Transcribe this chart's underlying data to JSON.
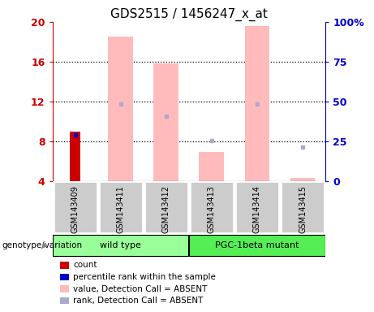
{
  "title": "GDS2515 / 1456247_x_at",
  "samples": [
    "GSM143409",
    "GSM143411",
    "GSM143412",
    "GSM143413",
    "GSM143414",
    "GSM143415"
  ],
  "ylim_left": [
    4,
    20
  ],
  "ylim_right": [
    0,
    100
  ],
  "yticks_left": [
    4,
    8,
    12,
    16,
    20
  ],
  "yticks_right": [
    0,
    25,
    50,
    75,
    100
  ],
  "ytick_labels_right": [
    "0",
    "25",
    "50",
    "75",
    "100%"
  ],
  "count_bars": {
    "GSM143409": {
      "value": 9.0,
      "color": "#cc0000"
    },
    "GSM143411": null,
    "GSM143412": null,
    "GSM143413": null,
    "GSM143414": null,
    "GSM143415": null
  },
  "percentile_bars": {
    "GSM143409": {
      "value": 8.6,
      "color": "#0000cc"
    },
    "GSM143411": null,
    "GSM143412": null,
    "GSM143413": null,
    "GSM143414": null,
    "GSM143415": null
  },
  "value_absent_bars": {
    "GSM143409": null,
    "GSM143411": {
      "value": 18.5
    },
    "GSM143412": {
      "value": 15.8
    },
    "GSM143413": {
      "value": 6.9
    },
    "GSM143414": {
      "value": 19.6
    },
    "GSM143415": {
      "value": 4.3
    }
  },
  "rank_absent_markers": {
    "GSM143409": null,
    "GSM143411": {
      "value": 11.7
    },
    "GSM143412": {
      "value": 10.5
    },
    "GSM143413": {
      "value": 8.1
    },
    "GSM143414": {
      "value": 11.7
    },
    "GSM143415": {
      "value": 7.4
    }
  },
  "value_absent_color": "#ffbbbb",
  "rank_absent_color": "#aaaacc",
  "genotype_groups": [
    {
      "label": "wild type",
      "start": 0,
      "end": 3,
      "color": "#99ff99"
    },
    {
      "label": "PGC-1beta mutant",
      "start": 3,
      "end": 6,
      "color": "#55ee55"
    }
  ],
  "legend_items": [
    {
      "label": "count",
      "color": "#cc0000"
    },
    {
      "label": "percentile rank within the sample",
      "color": "#0000cc"
    },
    {
      "label": "value, Detection Call = ABSENT",
      "color": "#ffbbbb"
    },
    {
      "label": "rank, Detection Call = ABSENT",
      "color": "#aaaacc"
    }
  ],
  "left_axis_color": "#cc0000",
  "right_axis_color": "#0000cc",
  "sample_bg": "#cccccc",
  "grid_yticks": [
    8,
    12,
    16
  ]
}
